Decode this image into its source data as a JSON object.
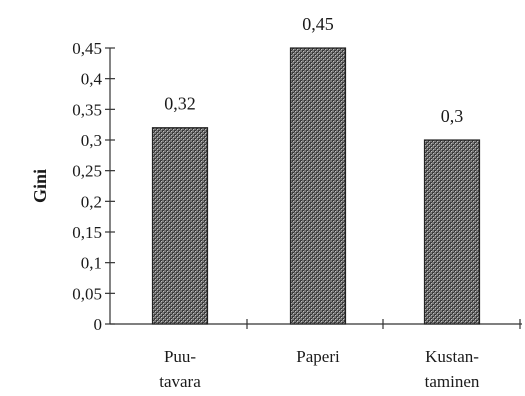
{
  "chart_data": {
    "type": "bar",
    "categories": [
      [
        "Puu-",
        "tavara"
      ],
      [
        "Paperi"
      ],
      [
        "Kustan-",
        "taminen"
      ]
    ],
    "values": [
      0.32,
      0.45,
      0.3
    ],
    "data_labels": [
      "0,32",
      "0,45",
      "0,3"
    ],
    "ylabel": "Gini",
    "ylim": [
      0,
      0.45
    ],
    "yticks": [
      0,
      0.05,
      0.1,
      0.15,
      0.2,
      0.25,
      0.3,
      0.35,
      0.4,
      0.45
    ],
    "ytick_labels": [
      "0",
      "0,05",
      "0,1",
      "0,15",
      "0,2",
      "0,25",
      "0,3",
      "0,35",
      "0,4",
      "0,45"
    ],
    "grid": false,
    "bar_fill": "hatched-gray"
  }
}
